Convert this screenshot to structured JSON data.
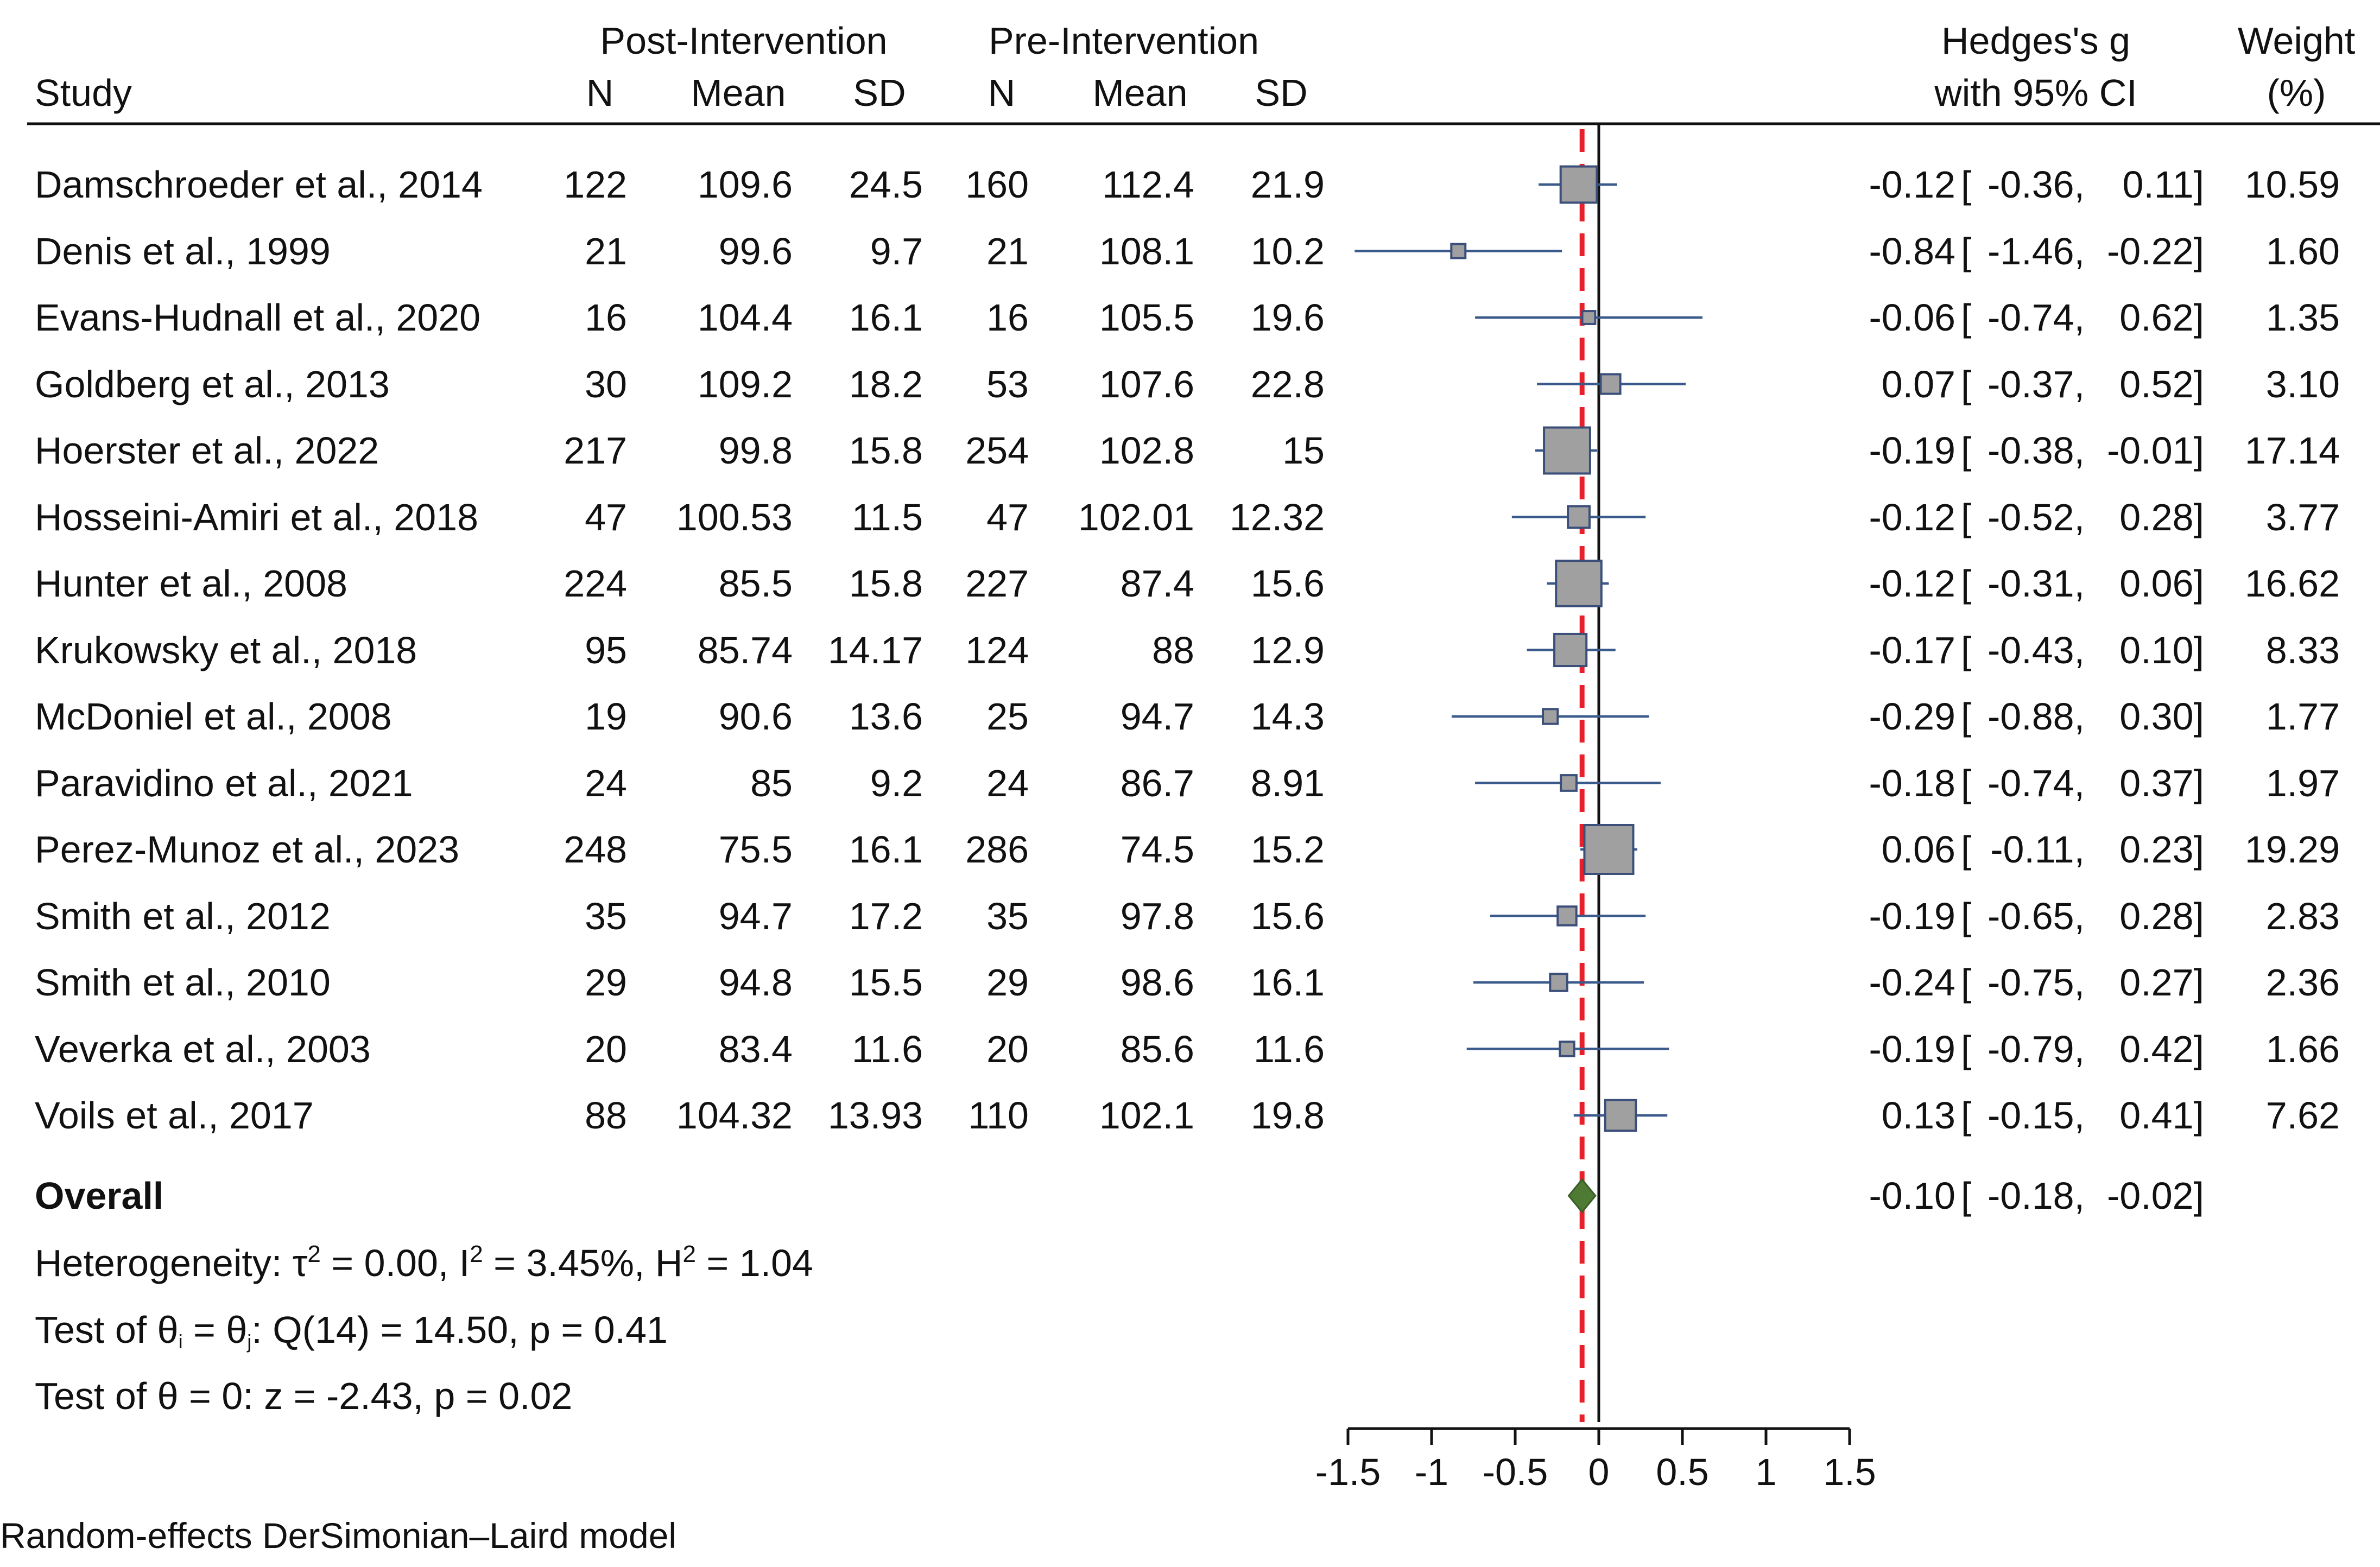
{
  "header": {
    "group_post": "Post-Intervention",
    "group_pre": "Pre-Intervention",
    "study": "Study",
    "n": "N",
    "mean": "Mean",
    "sd": "SD",
    "effect_line1": "Hedges's g",
    "effect_line2": "with 95% CI",
    "weight_line1": "Weight",
    "weight_line2": "(%)"
  },
  "chart_data": {
    "type": "forest",
    "xlim": [
      -1.5,
      1.5
    ],
    "x_ticks": [
      "-1.5",
      "-1",
      "-0.5",
      "0",
      "0.5",
      "1",
      "1.5"
    ],
    "x_tick_values": [
      -1.5,
      -1,
      -0.5,
      0,
      0.5,
      1,
      1.5
    ],
    "reference_line": 0,
    "overall_line": -0.1,
    "marker_color": "#a0a0a0",
    "marker_border": "#3b4f7a",
    "ci_color": "#3b5a8c",
    "diamond_color": "#4e7a34",
    "overall_line_color": "#e8202a",
    "studies": [
      {
        "study": "Damschroeder et al., 2014",
        "post_n": "122",
        "post_mean": "109.6",
        "post_sd": "24.5",
        "pre_n": "160",
        "pre_mean": "112.4",
        "pre_sd": "21.9",
        "g": -0.12,
        "lo": -0.36,
        "hi": 0.11,
        "g_text": "-0.12",
        "lo_text": "-0.36,",
        "hi_text": "0.11]",
        "weight": "10.59",
        "w": 10.59
      },
      {
        "study": "Denis et al., 1999",
        "post_n": "21",
        "post_mean": "99.6",
        "post_sd": "9.7",
        "pre_n": "21",
        "pre_mean": "108.1",
        "pre_sd": "10.2",
        "g": -0.84,
        "lo": -1.46,
        "hi": -0.22,
        "g_text": "-0.84",
        "lo_text": "-1.46,",
        "hi_text": "-0.22]",
        "weight": "1.60",
        "w": 1.6
      },
      {
        "study": "Evans-Hudnall et al., 2020",
        "post_n": "16",
        "post_mean": "104.4",
        "post_sd": "16.1",
        "pre_n": "16",
        "pre_mean": "105.5",
        "pre_sd": "19.6",
        "g": -0.06,
        "lo": -0.74,
        "hi": 0.62,
        "g_text": "-0.06",
        "lo_text": "-0.74,",
        "hi_text": "0.62]",
        "weight": "1.35",
        "w": 1.35
      },
      {
        "study": "Goldberg et al., 2013",
        "post_n": "30",
        "post_mean": "109.2",
        "post_sd": "18.2",
        "pre_n": "53",
        "pre_mean": "107.6",
        "pre_sd": "22.8",
        "g": 0.07,
        "lo": -0.37,
        "hi": 0.52,
        "g_text": "0.07",
        "lo_text": "-0.37,",
        "hi_text": "0.52]",
        "weight": "3.10",
        "w": 3.1
      },
      {
        "study": "Hoerster et al., 2022",
        "post_n": "217",
        "post_mean": "99.8",
        "post_sd": "15.8",
        "pre_n": "254",
        "pre_mean": "102.8",
        "pre_sd": "15",
        "g": -0.19,
        "lo": -0.38,
        "hi": -0.01,
        "g_text": "-0.19",
        "lo_text": "-0.38,",
        "hi_text": "-0.01]",
        "weight": "17.14",
        "w": 17.14
      },
      {
        "study": "Hosseini-Amiri et al., 2018",
        "post_n": "47",
        "post_mean": "100.53",
        "post_sd": "11.5",
        "pre_n": "47",
        "pre_mean": "102.01",
        "pre_sd": "12.32",
        "g": -0.12,
        "lo": -0.52,
        "hi": 0.28,
        "g_text": "-0.12",
        "lo_text": "-0.52,",
        "hi_text": "0.28]",
        "weight": "3.77",
        "w": 3.77
      },
      {
        "study": "Hunter et al., 2008",
        "post_n": "224",
        "post_mean": "85.5",
        "post_sd": "15.8",
        "pre_n": "227",
        "pre_mean": "87.4",
        "pre_sd": "15.6",
        "g": -0.12,
        "lo": -0.31,
        "hi": 0.06,
        "g_text": "-0.12",
        "lo_text": "-0.31,",
        "hi_text": "0.06]",
        "weight": "16.62",
        "w": 16.62
      },
      {
        "study": "Krukowsky et al., 2018",
        "post_n": "95",
        "post_mean": "85.74",
        "post_sd": "14.17",
        "pre_n": "124",
        "pre_mean": "88",
        "pre_sd": "12.9",
        "g": -0.17,
        "lo": -0.43,
        "hi": 0.1,
        "g_text": "-0.17",
        "lo_text": "-0.43,",
        "hi_text": "0.10]",
        "weight": "8.33",
        "w": 8.33
      },
      {
        "study": "McDoniel et al., 2008",
        "post_n": "19",
        "post_mean": "90.6",
        "post_sd": "13.6",
        "pre_n": "25",
        "pre_mean": "94.7",
        "pre_sd": "14.3",
        "g": -0.29,
        "lo": -0.88,
        "hi": 0.3,
        "g_text": "-0.29",
        "lo_text": "-0.88,",
        "hi_text": "0.30]",
        "weight": "1.77",
        "w": 1.77
      },
      {
        "study": "Paravidino et al., 2021",
        "post_n": "24",
        "post_mean": "85",
        "post_sd": "9.2",
        "pre_n": "24",
        "pre_mean": "86.7",
        "pre_sd": "8.91",
        "g": -0.18,
        "lo": -0.74,
        "hi": 0.37,
        "g_text": "-0.18",
        "lo_text": "-0.74,",
        "hi_text": "0.37]",
        "weight": "1.97",
        "w": 1.97
      },
      {
        "study": "Perez-Munoz et al., 2023",
        "post_n": "248",
        "post_mean": "75.5",
        "post_sd": "16.1",
        "pre_n": "286",
        "pre_mean": "74.5",
        "pre_sd": "15.2",
        "g": 0.06,
        "lo": -0.11,
        "hi": 0.23,
        "g_text": "0.06",
        "lo_text": "-0.11,",
        "hi_text": "0.23]",
        "weight": "19.29",
        "w": 19.29
      },
      {
        "study": "Smith et al., 2012",
        "post_n": "35",
        "post_mean": "94.7",
        "post_sd": "17.2",
        "pre_n": "35",
        "pre_mean": "97.8",
        "pre_sd": "15.6",
        "g": -0.19,
        "lo": -0.65,
        "hi": 0.28,
        "g_text": "-0.19",
        "lo_text": "-0.65,",
        "hi_text": "0.28]",
        "weight": "2.83",
        "w": 2.83
      },
      {
        "study": "Smith et al., 2010",
        "post_n": "29",
        "post_mean": "94.8",
        "post_sd": "15.5",
        "pre_n": "29",
        "pre_mean": "98.6",
        "pre_sd": "16.1",
        "g": -0.24,
        "lo": -0.75,
        "hi": 0.27,
        "g_text": "-0.24",
        "lo_text": "-0.75,",
        "hi_text": "0.27]",
        "weight": "2.36",
        "w": 2.36
      },
      {
        "study": "Veverka et al., 2003",
        "post_n": "20",
        "post_mean": "83.4",
        "post_sd": "11.6",
        "pre_n": "20",
        "pre_mean": "85.6",
        "pre_sd": "11.6",
        "g": -0.19,
        "lo": -0.79,
        "hi": 0.42,
        "g_text": "-0.19",
        "lo_text": "-0.79,",
        "hi_text": "0.42]",
        "weight": "1.66",
        "w": 1.66
      },
      {
        "study": "Voils et al., 2017",
        "post_n": "88",
        "post_mean": "104.32",
        "post_sd": "13.93",
        "pre_n": "110",
        "pre_mean": "102.1",
        "pre_sd": "19.8",
        "g": 0.13,
        "lo": -0.15,
        "hi": 0.41,
        "g_text": "0.13",
        "lo_text": "-0.15,",
        "hi_text": "0.41]",
        "weight": "7.62",
        "w": 7.62
      }
    ],
    "overall": {
      "label": "Overall",
      "g": -0.1,
      "lo": -0.18,
      "hi": -0.02,
      "g_text": "-0.10",
      "lo_text": "-0.18,",
      "hi_text": "-0.02]"
    }
  },
  "stats": {
    "heterogeneity_prefix": "Heterogeneity: τ",
    "tau_exp": "2",
    "het_mid": " = 0.00, I",
    "i_exp": "2",
    "het_mid2": " = 3.45%, H",
    "h_exp": "2",
    "het_end": " = 1.04",
    "test1_prefix": "Test of θ",
    "test1_sub_i": "i",
    "test1_mid": " = θ",
    "test1_sub_j": "j",
    "test1_end": ": Q(14) = 14.50, p = 0.41",
    "test2": "Test of θ = 0: z = -2.43, p = 0.02"
  },
  "footer": {
    "model": "Random-effects DerSimonian–Laird model"
  }
}
